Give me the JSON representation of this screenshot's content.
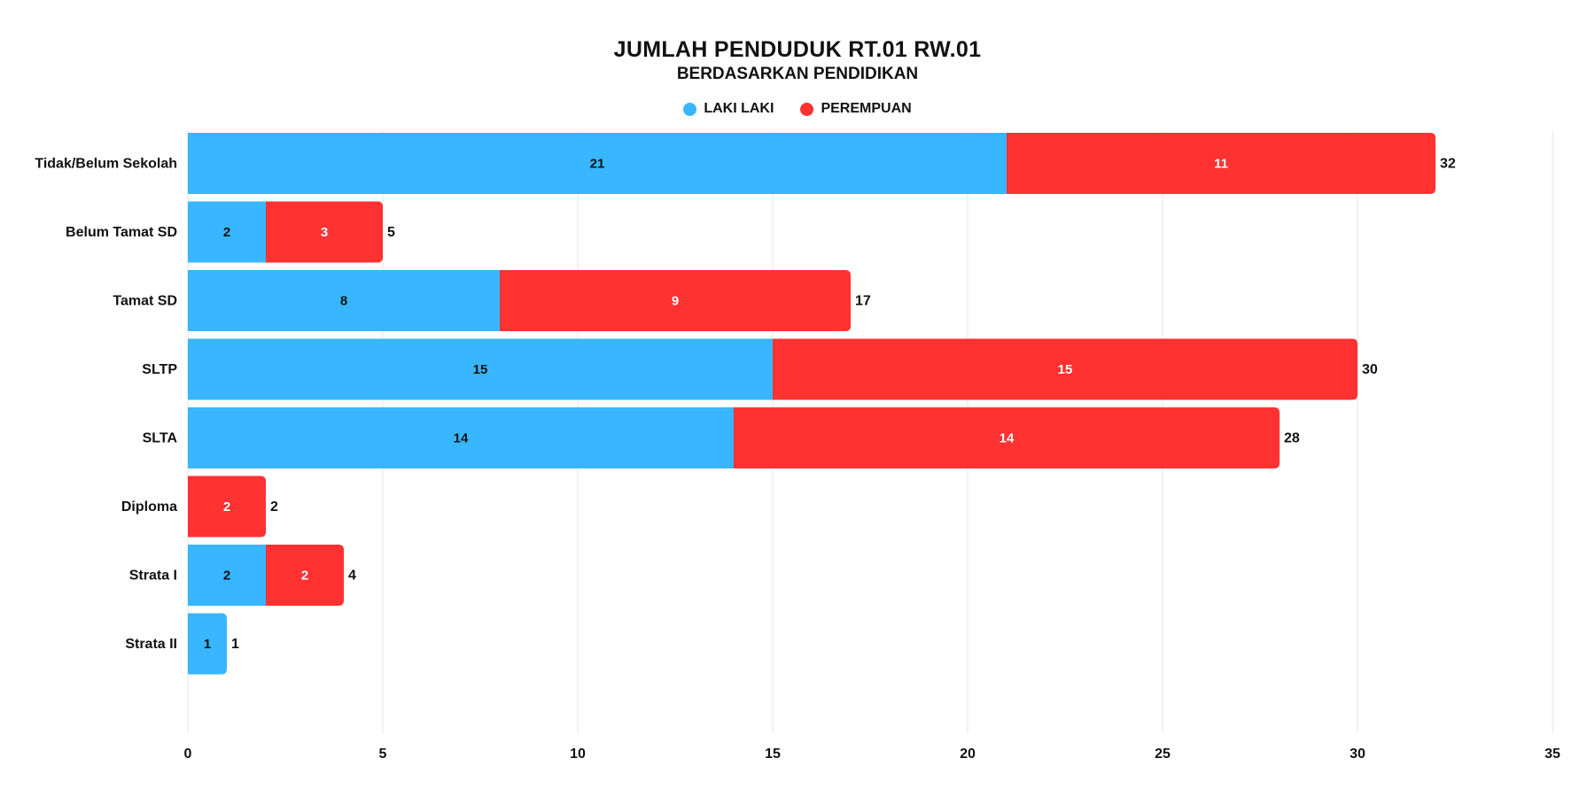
{
  "chart_data": {
    "type": "bar",
    "orientation": "horizontal",
    "stacked": true,
    "title": "JUMLAH PENDUDUK RT.01 RW.01",
    "subtitle": "BERDASARKAN PENDIDIKAN",
    "categories": [
      "Tidak/Belum Sekolah",
      "Belum Tamat SD",
      "Tamat SD",
      "SLTP",
      "SLTA",
      "Diploma",
      "Strata I",
      "Strata II"
    ],
    "series": [
      {
        "name": "LAKI LAKI",
        "color": "#38B6FF",
        "label_color": "#111111",
        "values": [
          21,
          2,
          8,
          15,
          14,
          0,
          2,
          1
        ]
      },
      {
        "name": "PEREMPUAN",
        "color": "#FF3131",
        "label_color": "#ffffff",
        "values": [
          11,
          3,
          9,
          15,
          14,
          2,
          2,
          0
        ]
      }
    ],
    "totals": [
      32,
      5,
      17,
      30,
      28,
      2,
      4,
      1
    ],
    "xlim": [
      0,
      35
    ],
    "xticks": [
      0,
      5,
      10,
      15,
      20,
      25,
      30,
      35
    ],
    "grid": true,
    "legend_position": "top-center"
  }
}
